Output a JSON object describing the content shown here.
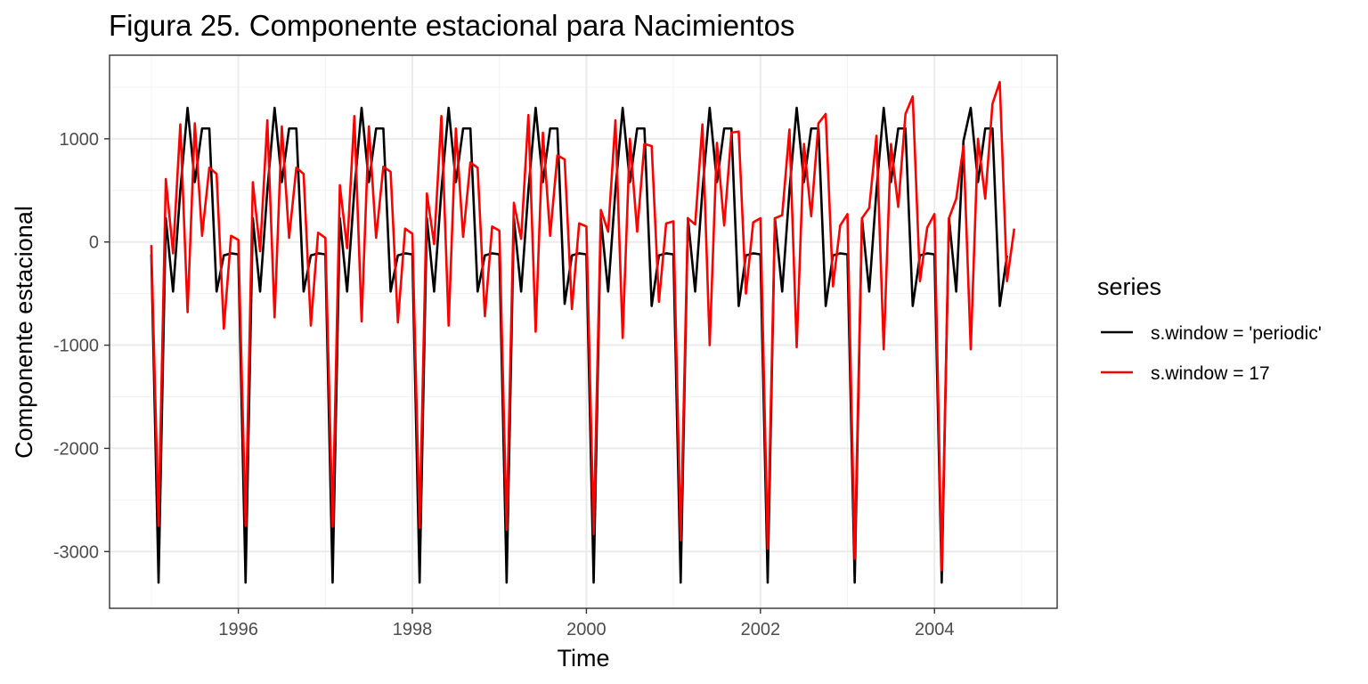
{
  "chart_data": {
    "type": "line",
    "title": "Figura 25. Componente estacional para Nacimientos",
    "xlabel": "Time",
    "ylabel": "Componente estacional",
    "xlim": [
      1994.52,
      2005.41
    ],
    "ylim": [
      -3550,
      1810
    ],
    "x_ticks": [
      1996,
      1998,
      2000,
      2002,
      2004
    ],
    "x_tick_labels": [
      "1996",
      "1998",
      "2000",
      "2002",
      "2004"
    ],
    "y_ticks": [
      -3000,
      -2000,
      -1000,
      0,
      1000
    ],
    "y_tick_labels": [
      "-3000",
      "-2000",
      "-1000",
      "0",
      "1000"
    ],
    "grid": true,
    "legend": {
      "title": "series",
      "position": "right"
    },
    "start_year": 1995,
    "frequency": 12,
    "series": [
      {
        "name": "s.window = 'periodic'",
        "color": "#000000",
        "values": [
          -120,
          -3300,
          230,
          -480,
          500,
          1300,
          580,
          1100,
          1100,
          -480,
          -130,
          -110,
          -120,
          -3300,
          230,
          -480,
          500,
          1300,
          580,
          1100,
          1100,
          -480,
          -130,
          -110,
          -120,
          -3300,
          230,
          -480,
          500,
          1300,
          580,
          1100,
          1100,
          -480,
          -130,
          -110,
          -120,
          -3300,
          230,
          -480,
          500,
          1300,
          580,
          1100,
          1100,
          -480,
          -130,
          -110,
          -120,
          -3300,
          230,
          -480,
          500,
          1300,
          580,
          1100,
          1100,
          -600,
          -130,
          -110,
          -120,
          -3300,
          230,
          -480,
          500,
          1300,
          580,
          1100,
          1100,
          -620,
          -130,
          -110,
          -120,
          -3300,
          230,
          -480,
          500,
          1300,
          580,
          1100,
          1100,
          -620,
          -130,
          -110,
          -120,
          -3300,
          230,
          -480,
          500,
          1300,
          580,
          1100,
          1100,
          -620,
          -130,
          -110,
          -120,
          -3300,
          230,
          -480,
          500,
          1300,
          580,
          1100,
          1100,
          -620,
          -130,
          -110,
          -120,
          -3300,
          230,
          -480,
          980,
          1300,
          580,
          1100,
          1100,
          -620,
          -130
        ]
      },
      {
        "name": "s.window = 17",
        "color": "#ff0000",
        "values": [
          -30,
          -2750,
          610,
          -110,
          1140,
          -680,
          1150,
          60,
          720,
          660,
          -840,
          60,
          20,
          -2750,
          580,
          -90,
          1180,
          -730,
          1120,
          40,
          720,
          660,
          -810,
          90,
          40,
          -2760,
          550,
          -60,
          1220,
          -770,
          1120,
          40,
          730,
          680,
          -780,
          130,
          80,
          -2770,
          470,
          -20,
          1220,
          -810,
          1100,
          50,
          770,
          720,
          -720,
          150,
          110,
          -2790,
          380,
          30,
          1230,
          -870,
          1060,
          60,
          840,
          800,
          -650,
          180,
          150,
          -2830,
          310,
          100,
          1180,
          -930,
          1000,
          100,
          950,
          930,
          -580,
          180,
          200,
          -2890,
          230,
          170,
          1140,
          -1000,
          960,
          160,
          1060,
          1070,
          -500,
          190,
          230,
          -2970,
          230,
          260,
          1090,
          -1020,
          950,
          250,
          1150,
          1240,
          -430,
          160,
          270,
          -3070,
          230,
          330,
          1030,
          -1040,
          950,
          340,
          1240,
          1410,
          -380,
          140,
          270,
          -3180,
          230,
          420,
          930,
          -1040,
          1000,
          420,
          1340,
          1550,
          -380,
          130
        ]
      }
    ]
  }
}
